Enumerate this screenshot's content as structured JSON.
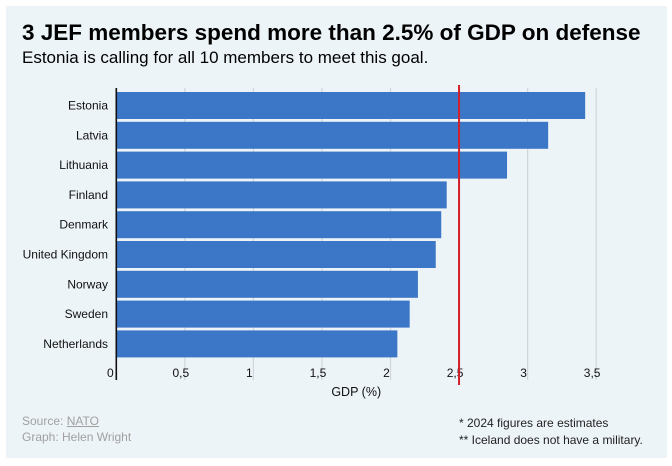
{
  "title": "3 JEF members spend more than 2.5% of GDP on defense",
  "subtitle": "Estonia is calling for all 10 members to meet this goal.",
  "footer": {
    "source_prefix": "Source: ",
    "source_link": "NATO",
    "credit": "Graph: Helen Wright",
    "note1": "* 2024 figures are estimates",
    "note2": "** Iceland does not have a military."
  },
  "colors": {
    "bar": "#3c76c6",
    "reference_line": "#d0202a",
    "background": "#edf4f8"
  },
  "chart_data": {
    "type": "bar",
    "orientation": "horizontal",
    "categories": [
      "Estonia",
      "Latvia",
      "Lithuania",
      "Finland",
      "Denmark",
      "United Kingdom",
      "Norway",
      "Sweden",
      "Netherlands"
    ],
    "values": [
      3.42,
      3.15,
      2.85,
      2.41,
      2.37,
      2.33,
      2.2,
      2.14,
      2.05
    ],
    "xlabel": "GDP (%)",
    "xlim": [
      0,
      3.5
    ],
    "xticks": [
      0,
      0.5,
      1,
      1.5,
      2,
      2.5,
      3,
      3.5
    ],
    "xtick_labels": [
      "0",
      "0,5",
      "1",
      "1,5",
      "2",
      "2,5",
      "3",
      "3,5"
    ],
    "reference_line": 2.5,
    "grid": "vertical"
  }
}
